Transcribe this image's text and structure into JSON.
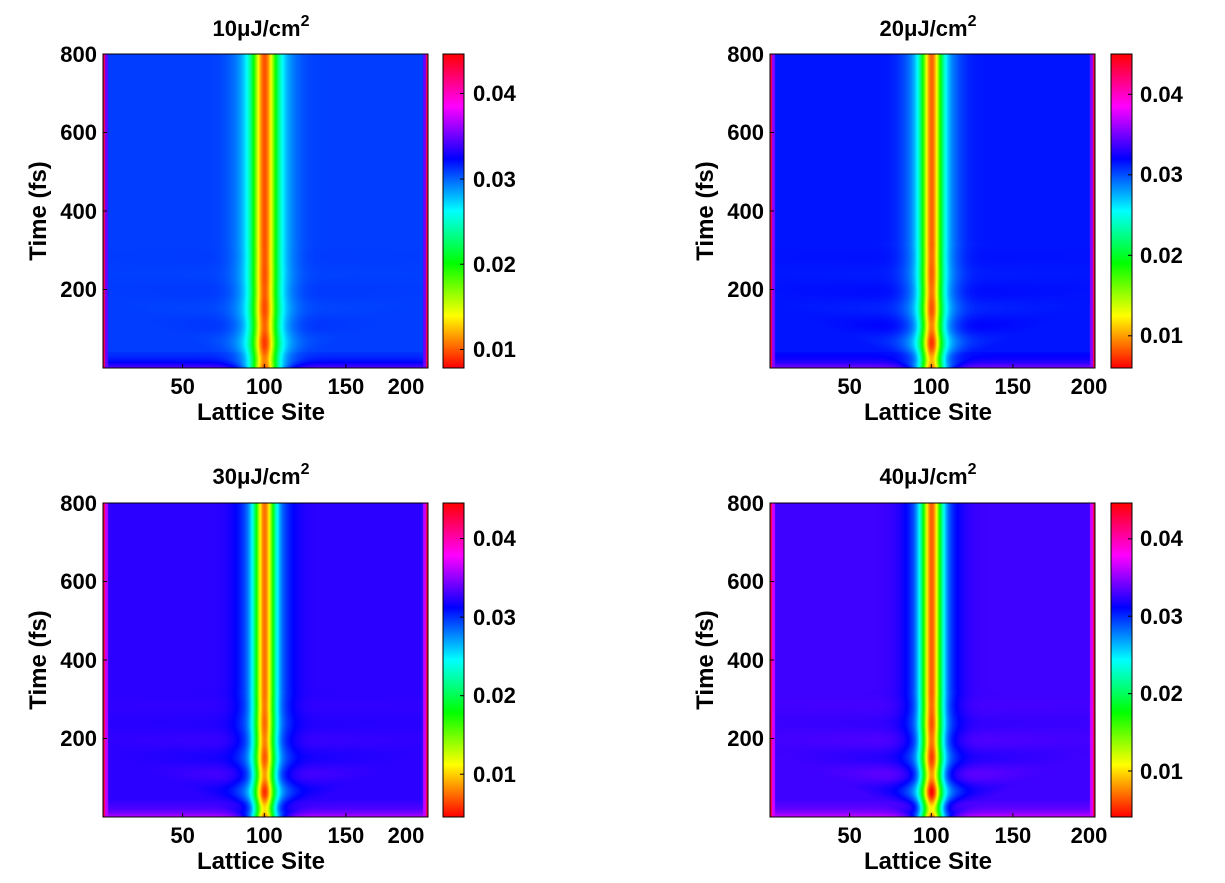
{
  "figure": {
    "colormap": "hsv",
    "panels": [
      {
        "title": "10μJ/cm",
        "title_sup": "2",
        "xlabel": "Lattice Site",
        "ylabel": "Time (fs)",
        "x_ticks": [
          "50",
          "100",
          "150",
          "200"
        ],
        "y_ticks": [
          "200",
          "400",
          "600",
          "800"
        ],
        "cb_ticks": [
          "0.01",
          "0.02",
          "0.03",
          "0.04"
        ]
      },
      {
        "title": "20μJ/cm",
        "title_sup": "2",
        "xlabel": "Lattice Site",
        "ylabel": "Time (fs)",
        "x_ticks": [
          "50",
          "100",
          "150",
          "200"
        ],
        "y_ticks": [
          "200",
          "400",
          "600",
          "800"
        ],
        "cb_ticks": [
          "0.01",
          "0.02",
          "0.03",
          "0.04"
        ]
      },
      {
        "title": "30μJ/cm",
        "title_sup": "2",
        "xlabel": "Lattice Site",
        "ylabel": "Time (fs)",
        "x_ticks": [
          "50",
          "100",
          "150",
          "200"
        ],
        "y_ticks": [
          "200",
          "400",
          "600",
          "800"
        ],
        "cb_ticks": [
          "0.01",
          "0.02",
          "0.03",
          "0.04"
        ]
      },
      {
        "title": "40μJ/cm",
        "title_sup": "2",
        "xlabel": "Lattice Site",
        "ylabel": "Time (fs)",
        "x_ticks": [
          "50",
          "100",
          "150",
          "200"
        ],
        "y_ticks": [
          "200",
          "400",
          "600",
          "800"
        ],
        "cb_ticks": [
          "0.01",
          "0.02",
          "0.03",
          "0.04"
        ]
      }
    ]
  },
  "chart_data": [
    {
      "type": "heatmap",
      "title": "10μJ/cm^2",
      "xlabel": "Lattice Site",
      "ylabel": "Time (fs)",
      "x_ticks": [
        50,
        100,
        150,
        200
      ],
      "y_ticks": [
        200,
        400,
        600,
        800
      ],
      "xlim": [
        1,
        200
      ],
      "ylim": [
        0,
        800
      ],
      "colorbar": {
        "ticks": [
          0.01,
          0.02,
          0.03,
          0.04
        ],
        "range": [
          0.0075,
          0.045
        ]
      },
      "background_value": 0.031,
      "center_site": 100,
      "center_value": 0.0095,
      "core_halfwidth_sites": 7,
      "halo_halfwidth_sites": 15,
      "edge_value": 0.043,
      "ripple_strength": 0.25
    },
    {
      "type": "heatmap",
      "title": "20μJ/cm^2",
      "xlabel": "Lattice Site",
      "ylabel": "Time (fs)",
      "x_ticks": [
        50,
        100,
        150,
        200
      ],
      "y_ticks": [
        200,
        400,
        600,
        800
      ],
      "xlim": [
        1,
        200
      ],
      "ylim": [
        0,
        800
      ],
      "colorbar": {
        "ticks": [
          0.01,
          0.02,
          0.03,
          0.04
        ],
        "range": [
          0.006,
          0.045
        ]
      },
      "background_value": 0.0315,
      "center_site": 100,
      "center_value": 0.0085,
      "core_halfwidth_sites": 6,
      "halo_halfwidth_sites": 14,
      "edge_value": 0.043,
      "ripple_strength": 0.45
    },
    {
      "type": "heatmap",
      "title": "30μJ/cm^2",
      "xlabel": "Lattice Site",
      "ylabel": "Time (fs)",
      "x_ticks": [
        50,
        100,
        150,
        200
      ],
      "y_ticks": [
        200,
        400,
        600,
        800
      ],
      "xlim": [
        1,
        200
      ],
      "ylim": [
        0,
        800
      ],
      "colorbar": {
        "ticks": [
          0.01,
          0.02,
          0.03,
          0.04
        ],
        "range": [
          0.004,
          0.045
        ]
      },
      "background_value": 0.0325,
      "center_site": 100,
      "center_value": 0.007,
      "core_halfwidth_sites": 6,
      "halo_halfwidth_sites": 14,
      "edge_value": 0.043,
      "ripple_strength": 0.65
    },
    {
      "type": "heatmap",
      "title": "40μJ/cm^2",
      "xlabel": "Lattice Site",
      "ylabel": "Time (fs)",
      "x_ticks": [
        50,
        100,
        150,
        200
      ],
      "y_ticks": [
        200,
        400,
        600,
        800
      ],
      "xlim": [
        1,
        200
      ],
      "ylim": [
        0,
        800
      ],
      "colorbar": {
        "ticks": [
          0.01,
          0.02,
          0.03,
          0.04
        ],
        "range": [
          0.004,
          0.045
        ]
      },
      "background_value": 0.033,
      "center_site": 100,
      "center_value": 0.0065,
      "core_halfwidth_sites": 6,
      "halo_halfwidth_sites": 14,
      "edge_value": 0.043,
      "ripple_strength": 0.85
    }
  ]
}
